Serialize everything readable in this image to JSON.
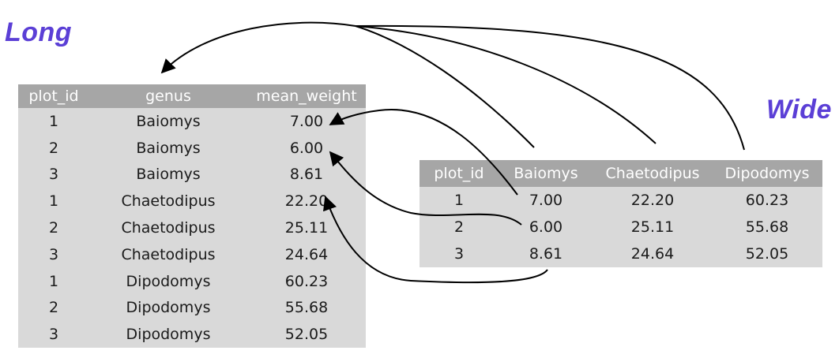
{
  "labels": {
    "long": "Long",
    "wide": "Wide"
  },
  "long_table": {
    "headers": [
      "plot_id",
      "genus",
      "mean_weight"
    ],
    "rows": [
      [
        "1",
        "Baiomys",
        "7.00"
      ],
      [
        "2",
        "Baiomys",
        "6.00"
      ],
      [
        "3",
        "Baiomys",
        "8.61"
      ],
      [
        "1",
        "Chaetodipus",
        "22.20"
      ],
      [
        "2",
        "Chaetodipus",
        "25.11"
      ],
      [
        "3",
        "Chaetodipus",
        "24.64"
      ],
      [
        "1",
        "Dipodomys",
        "60.23"
      ],
      [
        "2",
        "Dipodomys",
        "55.68"
      ],
      [
        "3",
        "Dipodomys",
        "52.05"
      ]
    ]
  },
  "wide_table": {
    "headers": [
      "plot_id",
      "Baiomys",
      "Chaetodipus",
      "Dipodomys"
    ],
    "rows": [
      [
        "1",
        "7.00",
        "22.20",
        "60.23"
      ],
      [
        "2",
        "6.00",
        "25.11",
        "55.68"
      ],
      [
        "3",
        "8.61",
        "24.64",
        "52.05"
      ]
    ]
  },
  "colors": {
    "label": "#5b3fd6",
    "header_bg": "#a6a6a6",
    "body_bg": "#d9d9d9",
    "arrow": "#000000"
  }
}
